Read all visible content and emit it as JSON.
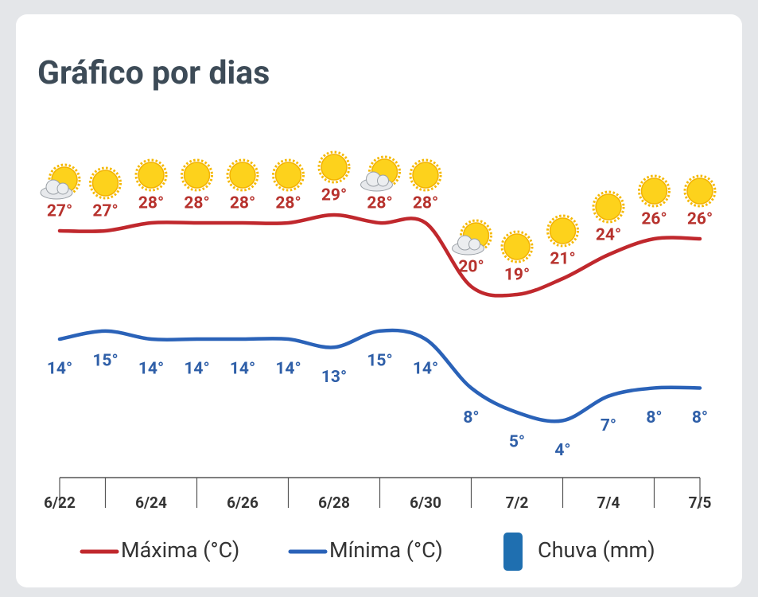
{
  "chart_data": {
    "type": "line",
    "title": "Gráfico por dias",
    "categories": [
      "6/22",
      null,
      "6/24",
      null,
      "6/26",
      null,
      "6/28",
      null,
      "6/30",
      null,
      "7/2",
      null,
      "7/4",
      null,
      "7/5"
    ],
    "ylim": [
      -4,
      40
    ],
    "y2lim": [
      -3,
      40
    ],
    "series": [
      {
        "name": "Máxima (°C)",
        "color": "#c0282d",
        "values": [
          27,
          27,
          28,
          28,
          28,
          28,
          29,
          28,
          28,
          20,
          19,
          21,
          24,
          26,
          26
        ],
        "value_labels": [
          "27°",
          "27°",
          "28°",
          "28°",
          "28°",
          "28°",
          "29°",
          "28°",
          "28°",
          "20°",
          "19°",
          "21°",
          "24°",
          "26°",
          "26°"
        ]
      },
      {
        "name": "Mínima (°C)",
        "color": "#2a62b8",
        "axis": "y2",
        "values": [
          14,
          15,
          14,
          14,
          14,
          14,
          13,
          15,
          14,
          8,
          5,
          4,
          7,
          8,
          8
        ],
        "value_labels": [
          "14°",
          "15°",
          "14°",
          "14°",
          "14°",
          "14°",
          "13°",
          "15°",
          "14°",
          "8°",
          "5°",
          "4°",
          "7°",
          "8°",
          "8°"
        ]
      },
      {
        "name": "Chuva (mm)",
        "color": "#1f6fb0",
        "values": [
          null,
          null,
          null,
          null,
          null,
          null,
          null,
          null,
          null,
          null,
          null,
          null,
          null,
          null,
          null
        ]
      }
    ]
  }
}
